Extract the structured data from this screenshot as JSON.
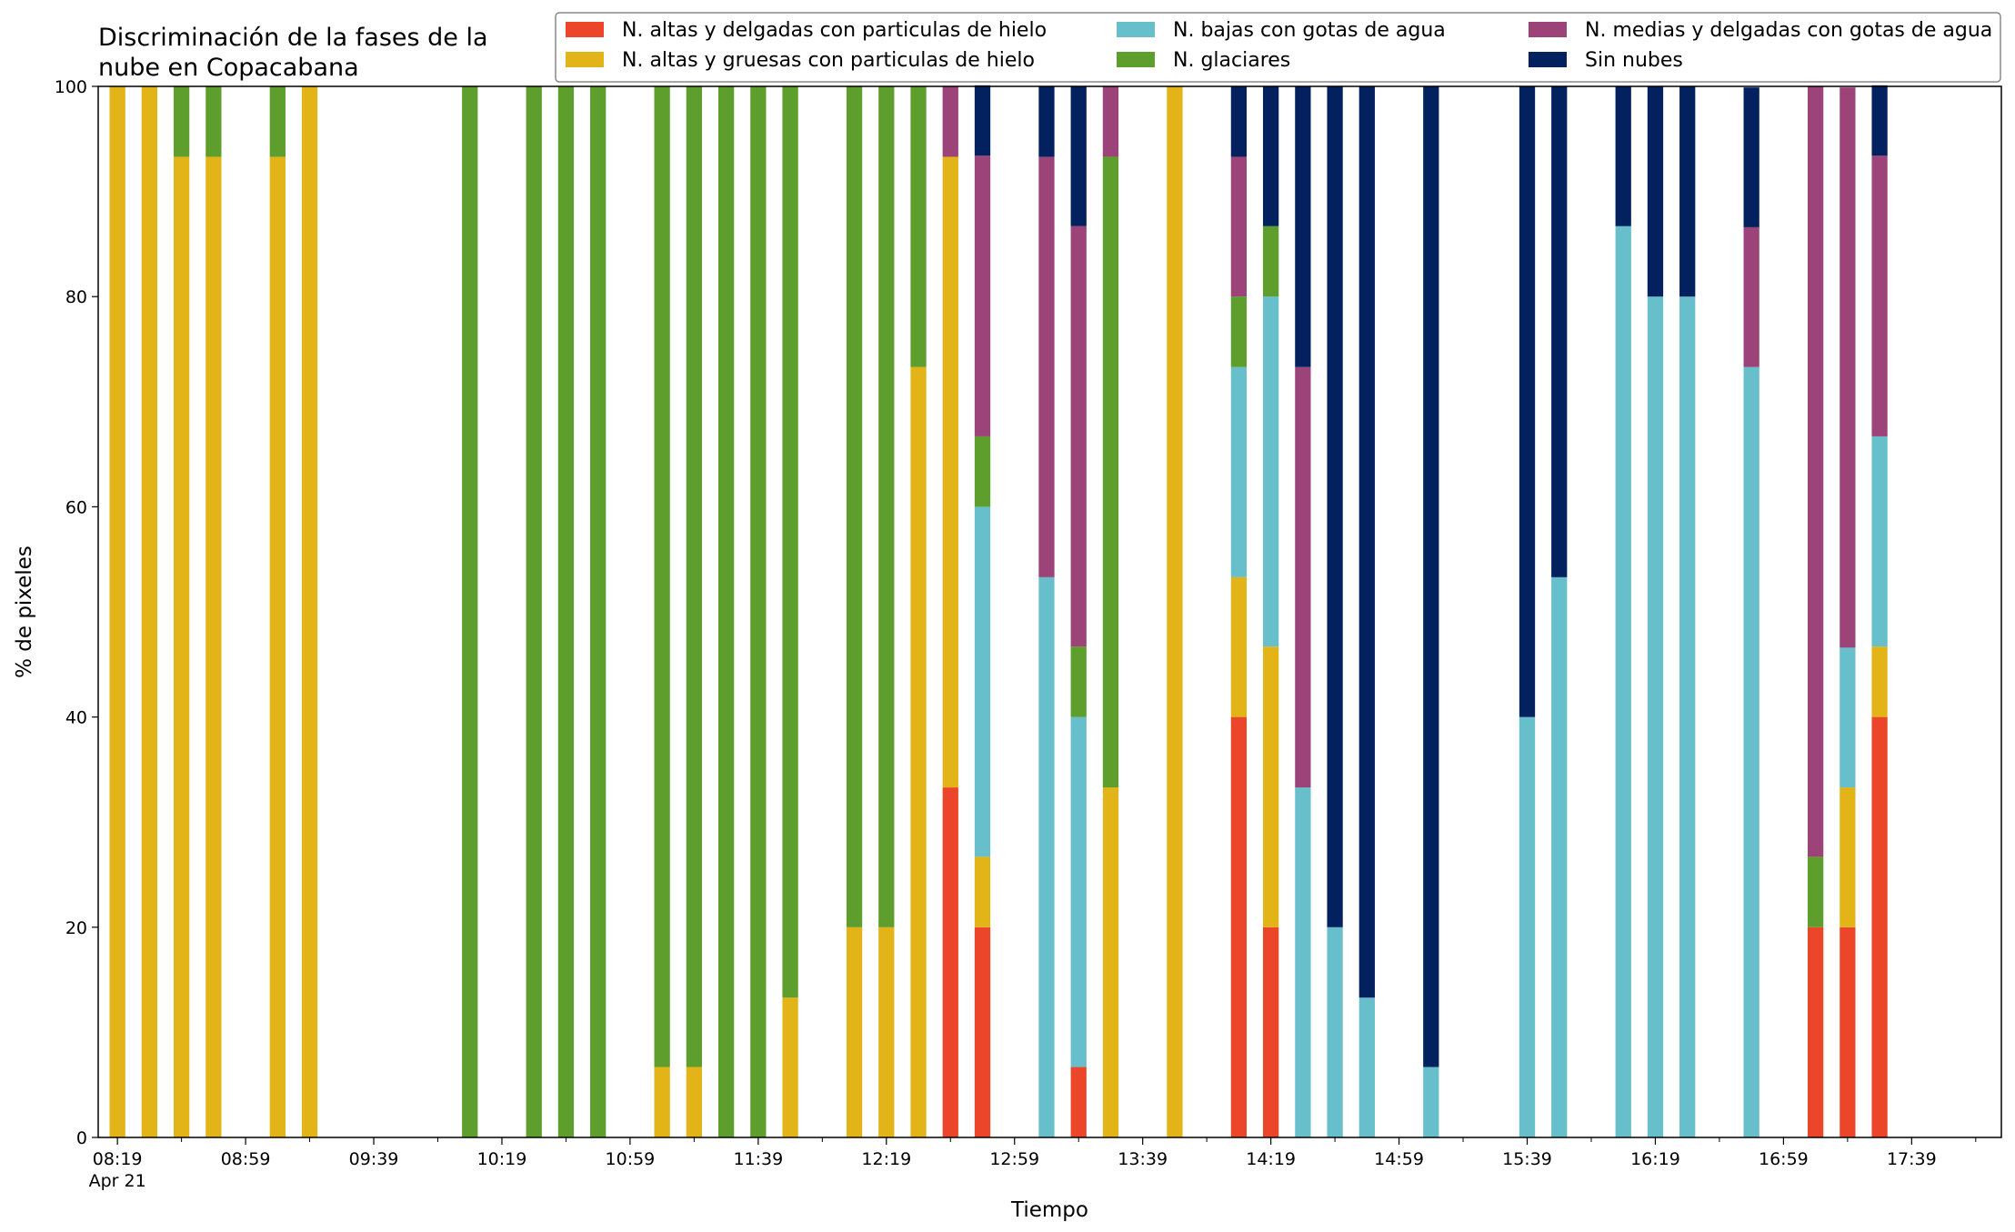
{
  "chart_data": {
    "type": "bar",
    "stacked": true,
    "title_lines": [
      "Discriminación de la fases de la",
      "nube en Copacabana"
    ],
    "xlabel": "Tiempo",
    "ylabel": "% de pixeles",
    "ylim": [
      0,
      100
    ],
    "yticks": [
      "0",
      "20",
      "40",
      "60",
      "80",
      "100"
    ],
    "xtick_labels": [
      "08:19",
      "08:59",
      "09:39",
      "10:19",
      "10:59",
      "11:39",
      "12:19",
      "12:59",
      "13:39",
      "14:19",
      "14:59",
      "15:39",
      "16:19",
      "16:59",
      "17:39"
    ],
    "xtick_sublabel": "Apr 21",
    "x_start": "08:19",
    "interval_minutes": 10,
    "x_end_offset": 58.8,
    "legend_position": "top-right",
    "grid": false,
    "series": [
      {
        "name": "N. altas y delgadas con particulas de hielo",
        "color": "#ec462a"
      },
      {
        "name": "N. altas y gruesas con particulas de hielo",
        "color": "#e2b418"
      },
      {
        "name": "N. bajas con gotas de agua",
        "color": "#66bfcb"
      },
      {
        "name": "N. glaciares",
        "color": "#5d9e2c"
      },
      {
        "name": "N. medias y delgadas con gotas de agua",
        "color": "#9c4479"
      },
      {
        "name": "Sin nubes",
        "color": "#03205f"
      }
    ],
    "bars": [
      {
        "slot": 0,
        "values": [
          0,
          100,
          0,
          0,
          0,
          0
        ]
      },
      {
        "slot": 1,
        "values": [
          0,
          100,
          0,
          0,
          0,
          0
        ]
      },
      {
        "slot": 2,
        "values": [
          0,
          93.3,
          0,
          6.7,
          0,
          0
        ]
      },
      {
        "slot": 3,
        "values": [
          0,
          93.3,
          0,
          6.7,
          0,
          0
        ]
      },
      {
        "slot": 5,
        "values": [
          0,
          93.3,
          0,
          6.7,
          0,
          0
        ]
      },
      {
        "slot": 6,
        "values": [
          0,
          100,
          0,
          0,
          0,
          0
        ]
      },
      {
        "slot": 11,
        "values": [
          0,
          0,
          0,
          100,
          0,
          0
        ]
      },
      {
        "slot": 13,
        "values": [
          0,
          0,
          0,
          100,
          0,
          0
        ]
      },
      {
        "slot": 14,
        "values": [
          0,
          0,
          0,
          100,
          0,
          0
        ]
      },
      {
        "slot": 15,
        "values": [
          0,
          0,
          0,
          100,
          0,
          0
        ]
      },
      {
        "slot": 17,
        "values": [
          0,
          6.7,
          0,
          93.3,
          0,
          0
        ]
      },
      {
        "slot": 18,
        "values": [
          0,
          6.7,
          0,
          93.3,
          0,
          0
        ]
      },
      {
        "slot": 19,
        "values": [
          0,
          0,
          0,
          100,
          0,
          0
        ]
      },
      {
        "slot": 20,
        "values": [
          0,
          0,
          0,
          100,
          0,
          0
        ]
      },
      {
        "slot": 21,
        "values": [
          0,
          13.3,
          0,
          86.7,
          0,
          0
        ]
      },
      {
        "slot": 23,
        "values": [
          0,
          20,
          0,
          80,
          0,
          0
        ]
      },
      {
        "slot": 24,
        "values": [
          0,
          20,
          0,
          80,
          0,
          0
        ]
      },
      {
        "slot": 25,
        "values": [
          0,
          73.3,
          0,
          26.7,
          0,
          0
        ]
      },
      {
        "slot": 26,
        "values": [
          33.3,
          60,
          0,
          0,
          6.7,
          0
        ]
      },
      {
        "slot": 27,
        "values": [
          20,
          6.7,
          33.3,
          6.7,
          26.7,
          6.7
        ]
      },
      {
        "slot": 29,
        "values": [
          0,
          0,
          53.3,
          0,
          40,
          6.7
        ]
      },
      {
        "slot": 30,
        "values": [
          6.7,
          0,
          33.3,
          6.7,
          40,
          13.3
        ]
      },
      {
        "slot": 31,
        "values": [
          0,
          33.3,
          0,
          60,
          6.7,
          0
        ]
      },
      {
        "slot": 33,
        "values": [
          0,
          100,
          0,
          0,
          0,
          0
        ]
      },
      {
        "slot": 35,
        "values": [
          40,
          13.3,
          20,
          6.7,
          13.3,
          6.7
        ]
      },
      {
        "slot": 36,
        "values": [
          20,
          26.7,
          33.3,
          6.7,
          0,
          13.3
        ]
      },
      {
        "slot": 37,
        "values": [
          0,
          0,
          33.3,
          0,
          40,
          26.7
        ]
      },
      {
        "slot": 38,
        "values": [
          0,
          0,
          20,
          0,
          0,
          80
        ]
      },
      {
        "slot": 39,
        "values": [
          0,
          0,
          13.3,
          0,
          0,
          86.7
        ]
      },
      {
        "slot": 41,
        "values": [
          0,
          0,
          6.7,
          0,
          0,
          93.3
        ]
      },
      {
        "slot": 44,
        "values": [
          0,
          0,
          40,
          0,
          0,
          60
        ]
      },
      {
        "slot": 45,
        "values": [
          0,
          0,
          53.3,
          0,
          0,
          46.7
        ]
      },
      {
        "slot": 47,
        "values": [
          0,
          0,
          86.7,
          0,
          0,
          13.3
        ]
      },
      {
        "slot": 48,
        "values": [
          0,
          0,
          80,
          0,
          0,
          20
        ]
      },
      {
        "slot": 49,
        "values": [
          0,
          0,
          80,
          0,
          0,
          20
        ]
      },
      {
        "slot": 51,
        "values": [
          0,
          0,
          73.3,
          0,
          13.3,
          13.3
        ]
      },
      {
        "slot": 53,
        "values": [
          20,
          0,
          0,
          6.7,
          73.3,
          0
        ]
      },
      {
        "slot": 54,
        "values": [
          20,
          13.3,
          13.3,
          0,
          53.3,
          0
        ]
      },
      {
        "slot": 55,
        "values": [
          40,
          6.7,
          20,
          0,
          26.7,
          6.7
        ]
      }
    ]
  }
}
